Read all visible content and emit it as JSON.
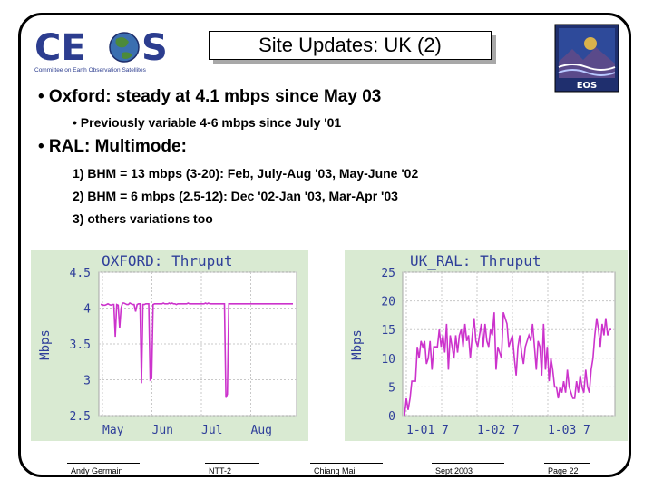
{
  "slide": {
    "title": "Site Updates: UK (2)",
    "logo_text": "CEOS",
    "logo_subtitle": "Committee on Earth Observation Satellites",
    "eos_label": "EOS"
  },
  "bullets": [
    {
      "text": "• Oxford: steady at 4.1 mbps since May 03"
    },
    {
      "text": "• Previously variable 4-6 mbps since July '01"
    },
    {
      "text": "• RAL: Multimode:"
    },
    {
      "text": "1)  BHM = 13 mbps (3-20): Feb, July-Aug '03, May-June '02"
    },
    {
      "text": "2)  BHM = 6 mbps (2.5-12): Dec '02-Jan '03, Mar-Apr '03"
    },
    {
      "text": "3) others variations too"
    }
  ],
  "footer": {
    "author": "Andy Germain",
    "project": "NTT-2",
    "location": "Chiang Mai",
    "date": "Sept 2003",
    "page": "Page 22"
  },
  "colors": {
    "chart_bg": "#d9ead2",
    "line": "#cc33cc",
    "label": "#2f3f9a"
  },
  "chart_data": [
    {
      "type": "line",
      "title": "OXFORD: Thruput",
      "ylabel": "Mbps",
      "y_ticks": [
        "4.5",
        "4",
        "3.5",
        "3",
        "2.5"
      ],
      "x_ticks": [
        "May",
        "Jun",
        "Jul",
        "Aug"
      ],
      "ylim": [
        2.5,
        4.5
      ],
      "series": [
        {
          "values": [
            4.05,
            4.05,
            4.04,
            4.04,
            4.05,
            4.06,
            4.05,
            4.04,
            4.05,
            4.05,
            3.6,
            4.05,
            4.04,
            3.72,
            4.0,
            4.07,
            4.07,
            4.06,
            4.05,
            4.05,
            4.07,
            4.06,
            4.05,
            4.05,
            3.95,
            4.05,
            4.06,
            4.06,
            2.95,
            4.05,
            4.05,
            4.06,
            4.06,
            4.06,
            3.0,
            3.02,
            4.05,
            4.06,
            4.06,
            4.06,
            4.06,
            4.06,
            4.06,
            4.07,
            4.06,
            4.06,
            4.06,
            4.07,
            4.06,
            4.07,
            4.06,
            4.06,
            4.05,
            4.06,
            4.06,
            4.06,
            4.06,
            4.06,
            4.06,
            4.06,
            4.07,
            4.06,
            4.06,
            4.06,
            4.06,
            4.06,
            4.06,
            4.06,
            4.06,
            4.06,
            4.06,
            4.06,
            4.07,
            4.06,
            4.07,
            4.06,
            4.06,
            4.06,
            4.06,
            4.06,
            4.06,
            4.06,
            4.06,
            4.06,
            4.06,
            4.06,
            2.75,
            2.8,
            4.06,
            4.06,
            4.06,
            4.06,
            4.06,
            4.06,
            4.06,
            4.06,
            4.06,
            4.06,
            4.06,
            4.06,
            4.06,
            4.06,
            4.06,
            4.06,
            4.06,
            4.06,
            4.06,
            4.06,
            4.06,
            4.06,
            4.06,
            4.06,
            4.06,
            4.06,
            4.06,
            4.06,
            4.06,
            4.06,
            4.06,
            4.06,
            4.06,
            4.06,
            4.06,
            4.06,
            4.06,
            4.06,
            4.06,
            4.06,
            4.06,
            4.06,
            4.06,
            4.06,
            4.06
          ]
        }
      ]
    },
    {
      "type": "line",
      "title": "UK_RAL: Thruput",
      "ylabel": "Mbps",
      "y_ticks": [
        "25",
        "20",
        "15",
        "10",
        "5",
        "0"
      ],
      "x_ticks": [
        "1-01",
        "7",
        "1-02",
        "7",
        "1-03",
        "7"
      ],
      "ylim": [
        0,
        25
      ],
      "series": [
        {
          "values": [
            0,
            3,
            1,
            3,
            6,
            6,
            6,
            12,
            10,
            13,
            12,
            13,
            9,
            10,
            13,
            8,
            12,
            12,
            12,
            15,
            12,
            14,
            11,
            16,
            8,
            14,
            12,
            10,
            14,
            11,
            14,
            15,
            12,
            16,
            13,
            14,
            10,
            14,
            17,
            13,
            12,
            14,
            16,
            12,
            16,
            13,
            12,
            15,
            14,
            18,
            8,
            12,
            11,
            10,
            18,
            17,
            16,
            12,
            13,
            14,
            10,
            7,
            12,
            14,
            11,
            9,
            12,
            13,
            14,
            13,
            16,
            12,
            8,
            13,
            12,
            7,
            16,
            8,
            12,
            6,
            10,
            8,
            5,
            5,
            3,
            5,
            4,
            6,
            4,
            8,
            5,
            4,
            3,
            3,
            6,
            4,
            7,
            5,
            4,
            8,
            5,
            4,
            8,
            10,
            14,
            17,
            15,
            12,
            16,
            14,
            17,
            14,
            15,
            15
          ]
        }
      ]
    }
  ]
}
